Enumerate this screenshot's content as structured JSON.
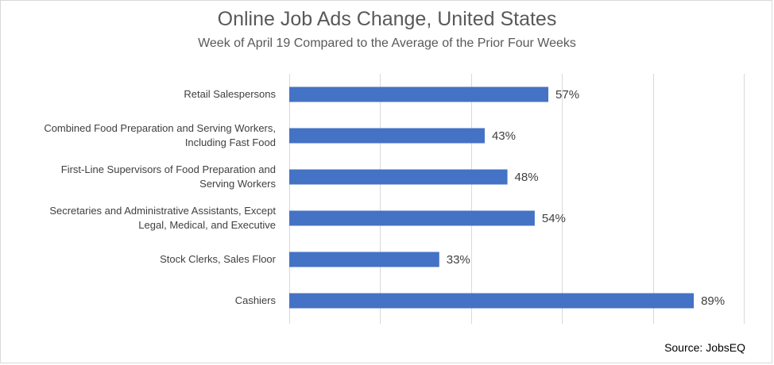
{
  "chart_data": {
    "type": "bar",
    "orientation": "horizontal",
    "title": "Online Job Ads Change, United States",
    "subtitle": "Week of April 19 Compared to the Average of the Prior Four Weeks",
    "categories": [
      [
        "Retail Salespersons"
      ],
      [
        "Combined Food Preparation and Serving Workers,",
        "Including Fast Food"
      ],
      [
        "First-Line Supervisors of Food Preparation and",
        "Serving Workers"
      ],
      [
        "Secretaries and Administrative Assistants, Except",
        "Legal, Medical, and Executive"
      ],
      [
        "Stock Clerks, Sales Floor"
      ],
      [
        "Cashiers"
      ]
    ],
    "values": [
      57,
      43,
      48,
      54,
      33,
      89
    ],
    "value_labels": [
      "57%",
      "43%",
      "48%",
      "54%",
      "33%",
      "89%"
    ],
    "xlim": [
      0,
      100
    ],
    "grid": true,
    "bar_color": "#4472c4",
    "source": "Source: JobsEQ"
  }
}
